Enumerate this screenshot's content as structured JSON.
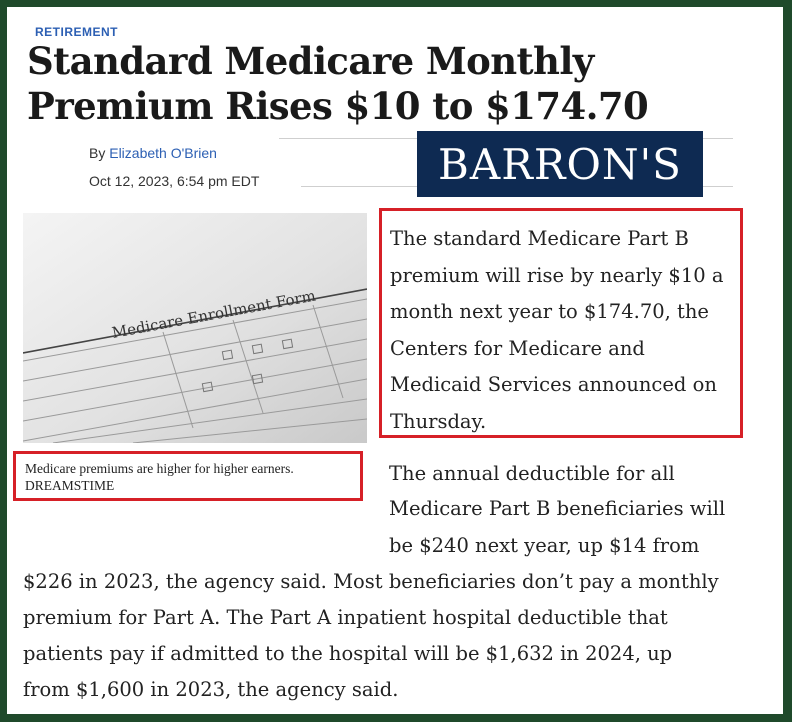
{
  "article": {
    "section": "RETIREMENT",
    "headline": "Standard Medicare Monthly Premium Rises $10 to $174.70",
    "byline_prefix": "By ",
    "author": "Elizabeth O'Brien",
    "date": "Oct 12, 2023, 6:54 pm EDT",
    "logo_text": "BARRON'S",
    "photo": {
      "form_title": "Medicare Enrollment Form",
      "caption": "Medicare premiums are higher for higher earners.",
      "credit": "DREAMSTIME"
    },
    "lead_paragraph": "The standard Medicare Part B premium will rise by nearly $10 a month next year to $174.70, the Centers for Medicare and Medicaid Services announced on Thursday.",
    "second_paragraph_lines": [
      "The annual deductible for all",
      "Medicare Part B beneficiaries will",
      "be $240 next year, up $14 from",
      "$226 in 2023, the agency said. Most beneficiaries don’t pay a monthly",
      "premium for Part A. The Part A inpatient hospital deductible that",
      "patients pay if admitted to the hospital will be $1,632 in 2024, up",
      "from $1,600 in 2023, the agency said."
    ]
  },
  "colors": {
    "background_frame": "#1f4a2b",
    "link_blue": "#2c5fb3",
    "highlight_red": "#d62027",
    "logo_navy": "#0e2a52"
  }
}
